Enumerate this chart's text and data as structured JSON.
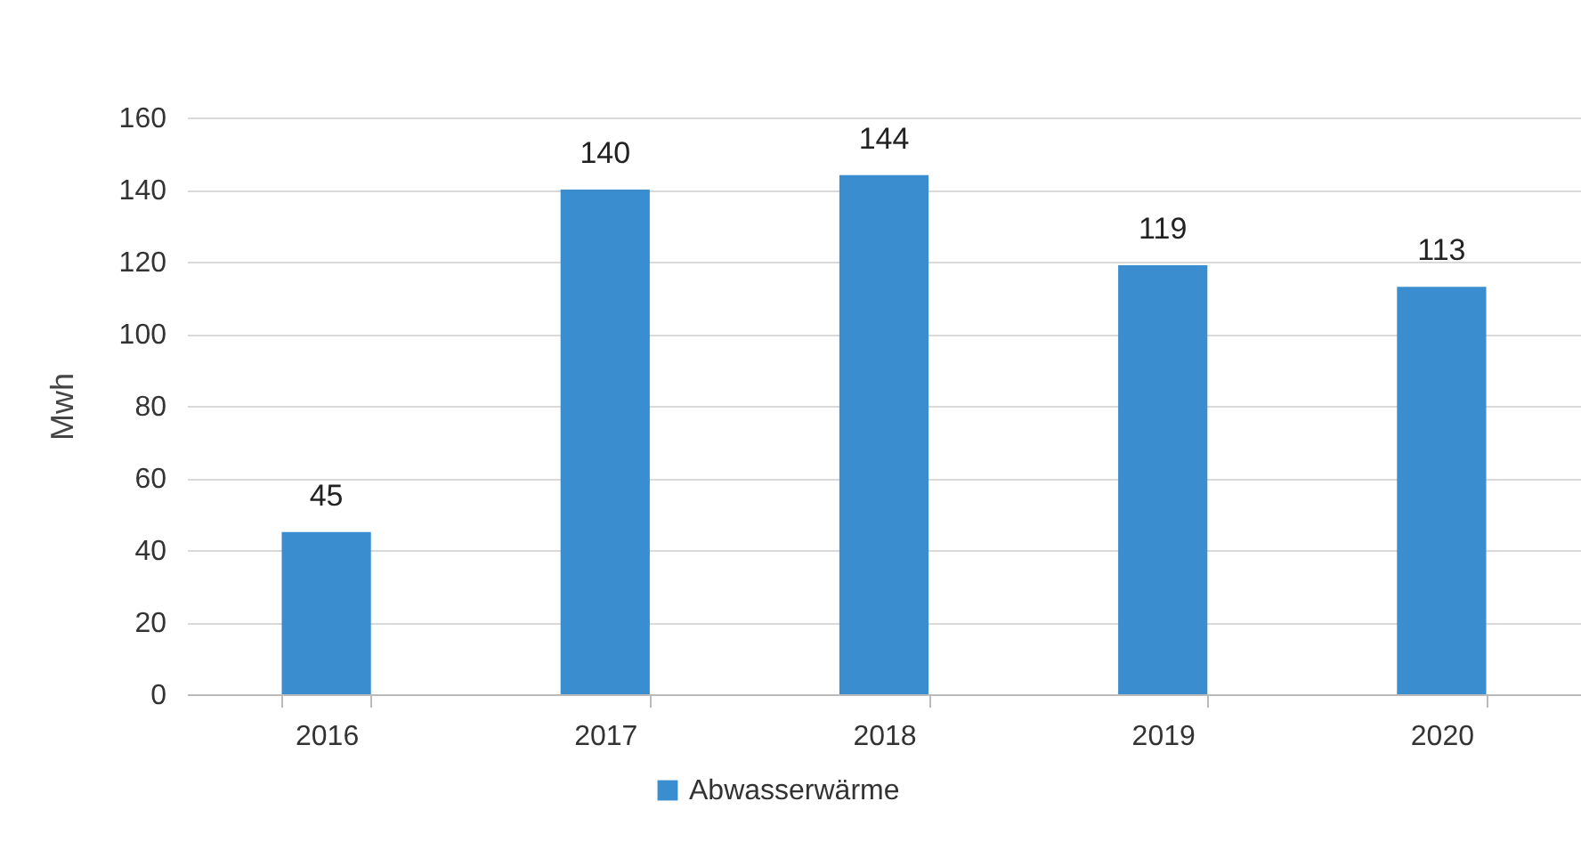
{
  "chart_data": {
    "type": "bar",
    "ylabel": "Mwh",
    "categories": [
      "2016",
      "2017",
      "2018",
      "2019",
      "2020"
    ],
    "series": [
      {
        "name": "Abwasserwärme",
        "color": "#3a8dcf",
        "values": [
          45,
          140,
          144,
          119,
          113
        ]
      }
    ],
    "ylim": [
      0,
      160
    ],
    "yticks": [
      0,
      20,
      40,
      60,
      80,
      100,
      120,
      140,
      160
    ],
    "grid": "y",
    "legend": "bottom",
    "data_labels": true
  }
}
